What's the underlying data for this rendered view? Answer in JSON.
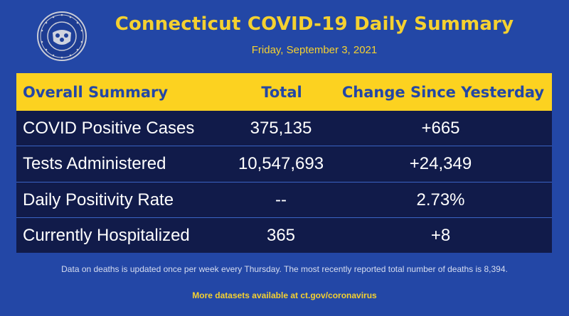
{
  "header": {
    "title": "Connecticut COVID-19 Daily Summary",
    "date": "Friday, September 3, 2021",
    "seal": {
      "name": "seal-icon",
      "text": "GOVERNOR · STATE OF CONNECTICUT"
    }
  },
  "table": {
    "columns": [
      "Overall Summary",
      "Total",
      "Change Since Yesterday"
    ],
    "rows": [
      {
        "label": "COVID Positive Cases",
        "total": "375,135",
        "change": "+665"
      },
      {
        "label": "Tests Administered",
        "total": "10,547,693",
        "change": "+24,349"
      },
      {
        "label": "Daily Positivity Rate",
        "total": "--",
        "change": "2.73%"
      },
      {
        "label": "Currently Hospitalized",
        "total": "365",
        "change": "+8"
      }
    ]
  },
  "footer": {
    "note": "Data on deaths is updated once per week every Thursday. The most recently reported total number of deaths is 8,394.",
    "more": "More datasets available at ct.gov/coronavirus"
  },
  "colors": {
    "background": "#2347a6",
    "accent": "#fcd220",
    "table_body": "#111b4a"
  }
}
